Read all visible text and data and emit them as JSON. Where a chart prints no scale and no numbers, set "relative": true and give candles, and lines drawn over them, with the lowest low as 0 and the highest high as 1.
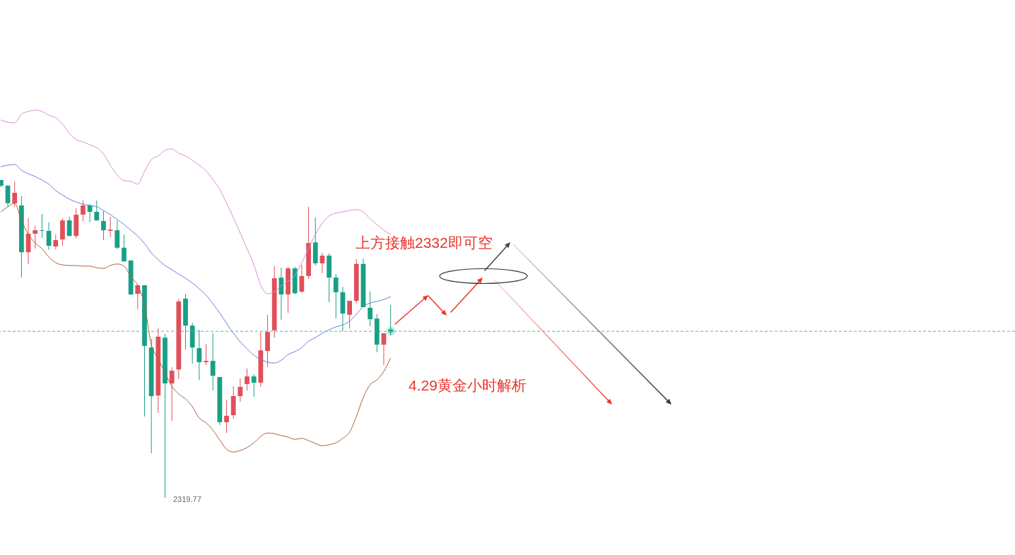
{
  "chart_data": {
    "type": "candlestick",
    "relative": true,
    "categories": [
      null,
      null,
      null,
      null,
      null,
      null,
      null,
      null,
      null,
      null,
      null,
      null,
      null,
      null,
      null,
      null,
      null,
      null,
      null,
      null,
      null,
      null,
      null,
      null,
      null,
      null,
      null,
      null,
      null,
      null,
      null,
      null,
      null,
      null,
      null,
      null,
      null,
      null,
      null,
      null,
      null,
      null,
      null,
      null,
      null,
      null,
      null,
      null,
      null,
      null,
      null,
      null,
      null,
      null,
      null,
      null,
      null,
      null
    ],
    "ohlc": [
      [
        1.0,
        1.0,
        0.978,
        0.982
      ],
      [
        0.982,
        0.984,
        0.918,
        0.927
      ],
      [
        0.927,
        0.996,
        0.916,
        0.96
      ],
      [
        0.92,
        0.949,
        0.693,
        0.773
      ],
      [
        0.773,
        0.88,
        0.736,
        0.831
      ],
      [
        0.831,
        0.856,
        0.784,
        0.842
      ],
      [
        0.842,
        0.893,
        0.818,
        0.84
      ],
      [
        0.84,
        0.867,
        0.78,
        0.793
      ],
      [
        0.791,
        0.829,
        0.782,
        0.811
      ],
      [
        0.813,
        0.88,
        0.793,
        0.873
      ],
      [
        0.873,
        0.884,
        0.824,
        0.824
      ],
      [
        0.824,
        0.911,
        0.816,
        0.891
      ],
      [
        0.891,
        0.936,
        0.871,
        0.92
      ],
      [
        0.92,
        0.924,
        0.867,
        0.9
      ],
      [
        0.9,
        0.936,
        0.873,
        0.873
      ],
      [
        0.871,
        0.902,
        0.811,
        0.842
      ],
      [
        0.84,
        0.884,
        0.82,
        0.844
      ],
      [
        0.842,
        0.873,
        0.782,
        0.787
      ],
      [
        0.787,
        0.829,
        0.744,
        0.744
      ],
      [
        0.747,
        0.747,
        0.638,
        0.64
      ],
      [
        0.642,
        0.669,
        0.593,
        0.669
      ],
      [
        0.669,
        0.669,
        0.256,
        0.478
      ],
      [
        0.473,
        0.5,
        0.14,
        0.32
      ],
      [
        0.322,
        0.533,
        0.267,
        0.507
      ],
      [
        0.504,
        0.516,
        0.0,
        0.36
      ],
      [
        0.36,
        0.411,
        0.242,
        0.4
      ],
      [
        0.404,
        0.627,
        0.373,
        0.618
      ],
      [
        0.627,
        0.642,
        0.467,
        0.542
      ],
      [
        0.542,
        0.551,
        0.422,
        0.473
      ],
      [
        0.471,
        0.529,
        0.371,
        0.427
      ],
      [
        0.427,
        0.484,
        0.418,
        0.431
      ],
      [
        0.431,
        0.518,
        0.338,
        0.384
      ],
      [
        0.38,
        0.38,
        0.229,
        0.238
      ],
      [
        0.238,
        0.307,
        0.204,
        0.258
      ],
      [
        0.26,
        0.351,
        0.249,
        0.32
      ],
      [
        0.32,
        0.376,
        0.302,
        0.349
      ],
      [
        0.358,
        0.407,
        0.338,
        0.382
      ],
      [
        0.382,
        0.389,
        0.318,
        0.362
      ],
      [
        0.362,
        0.522,
        0.349,
        0.464
      ],
      [
        0.462,
        0.576,
        0.413,
        0.522
      ],
      [
        0.527,
        0.729,
        0.504,
        0.691
      ],
      [
        0.693,
        0.724,
        0.56,
        0.64
      ],
      [
        0.64,
        0.727,
        0.582,
        0.722
      ],
      [
        0.722,
        0.727,
        0.64,
        0.644
      ],
      [
        0.649,
        0.733,
        0.644,
        0.698
      ],
      [
        0.698,
        0.916,
        0.689,
        0.802
      ],
      [
        0.804,
        0.882,
        0.731,
        0.738
      ],
      [
        0.738,
        0.771,
        0.707,
        0.762
      ],
      [
        0.762,
        0.769,
        0.616,
        0.693
      ],
      [
        0.693,
        0.704,
        0.564,
        0.647
      ],
      [
        0.647,
        0.664,
        0.524,
        0.58
      ],
      [
        0.576,
        0.62,
        0.533,
        0.62
      ],
      [
        0.62,
        0.751,
        0.613,
        0.736
      ],
      [
        0.736,
        0.753,
        0.6,
        0.6
      ],
      [
        0.598,
        0.649,
        0.54,
        0.562
      ],
      [
        0.564,
        0.578,
        0.458,
        0.482
      ],
      [
        0.482,
        0.518,
        0.418,
        0.518
      ],
      [
        0.529,
        0.607,
        0.511,
        0.524
      ]
    ],
    "colors": [
      "#17a086",
      "#17a086",
      "#e0505a",
      "#17a086",
      "#e0505a",
      "#e0505a",
      "#17a086",
      "#17a086",
      "#e0505a",
      "#e0505a",
      "#17a086",
      "#e0505a",
      "#e0505a",
      "#17a086",
      "#17a086",
      "#17a086",
      "#e0505a",
      "#17a086",
      "#17a086",
      "#17a086",
      "#e0505a",
      "#17a086",
      "#17a086",
      "#e0505a",
      "#17a086",
      "#e0505a",
      "#e0505a",
      "#17a086",
      "#17a086",
      "#17a086",
      "#e0505a",
      "#17a086",
      "#17a086",
      "#e0505a",
      "#e0505a",
      "#e0505a",
      "#e0505a",
      "#17a086",
      "#e0505a",
      "#e0505a",
      "#e0505a",
      "#17a086",
      "#e0505a",
      "#17a086",
      "#e0505a",
      "#e0505a",
      "#17a086",
      "#e0505a",
      "#17a086",
      "#17a086",
      "#17a086",
      "#e0505a",
      "#e0505a",
      "#17a086",
      "#17a086",
      "#17a086",
      "#e0505a",
      "#17a086"
    ],
    "series": [
      {
        "type": "line",
        "color": "#d98ed6",
        "values": [
          1.189,
          1.182,
          1.18,
          1.207,
          1.216,
          1.22,
          1.216,
          1.204,
          1.196,
          1.176,
          1.147,
          1.127,
          1.12,
          1.111,
          1.102,
          1.082,
          1.047,
          1.016,
          0.998,
          0.996,
          0.987,
          1.027,
          1.064,
          1.076,
          1.093,
          1.098,
          1.084,
          1.076,
          1.062,
          1.047,
          1.029,
          1.002,
          0.971,
          0.927,
          0.882,
          0.833,
          0.784,
          0.733,
          0.669,
          0.642,
          0.649,
          0.667,
          0.682,
          0.7,
          0.74,
          0.784,
          0.829,
          0.864,
          0.887,
          0.896,
          0.9,
          0.904,
          0.907,
          0.9,
          0.878,
          0.86,
          0.842,
          0.829
        ]
      },
      {
        "type": "line",
        "color": "#6b7fd7",
        "values": [
          1.042,
          1.047,
          1.049,
          1.031,
          1.02,
          1.011,
          1.0,
          0.987,
          0.967,
          0.953,
          0.94,
          0.931,
          0.924,
          0.92,
          0.916,
          0.904,
          0.891,
          0.876,
          0.86,
          0.842,
          0.824,
          0.8,
          0.771,
          0.749,
          0.731,
          0.718,
          0.704,
          0.691,
          0.676,
          0.658,
          0.638,
          0.611,
          0.582,
          0.549,
          0.518,
          0.491,
          0.469,
          0.449,
          0.436,
          0.427,
          0.424,
          0.433,
          0.451,
          0.46,
          0.473,
          0.493,
          0.504,
          0.518,
          0.529,
          0.538,
          0.544,
          0.556,
          0.578,
          0.602,
          0.613,
          0.618,
          0.624,
          0.633
        ]
      },
      {
        "type": "line",
        "color": "#a8623c",
        "values": [
          0.9,
          0.916,
          0.927,
          0.873,
          0.829,
          0.802,
          0.784,
          0.758,
          0.74,
          0.733,
          0.731,
          0.731,
          0.729,
          0.729,
          0.724,
          0.722,
          0.731,
          0.736,
          0.729,
          0.696,
          0.669,
          0.607,
          0.482,
          0.438,
          0.393,
          0.351,
          0.327,
          0.311,
          0.287,
          0.251,
          0.236,
          0.213,
          0.182,
          0.153,
          0.144,
          0.149,
          0.158,
          0.173,
          0.193,
          0.204,
          0.202,
          0.196,
          0.191,
          0.184,
          0.187,
          0.18,
          0.171,
          0.164,
          0.167,
          0.173,
          0.187,
          0.207,
          0.256,
          0.316,
          0.356,
          0.371,
          0.398,
          0.44
        ]
      }
    ],
    "ref_lines": [
      {
        "axis": "y",
        "value": 0.524,
        "color": "#4fb8ad",
        "line_style": "dashed"
      }
    ],
    "annotations": [
      "上方接触2332即可空",
      "4.29黄金小时解析",
      "2319.77"
    ]
  }
}
